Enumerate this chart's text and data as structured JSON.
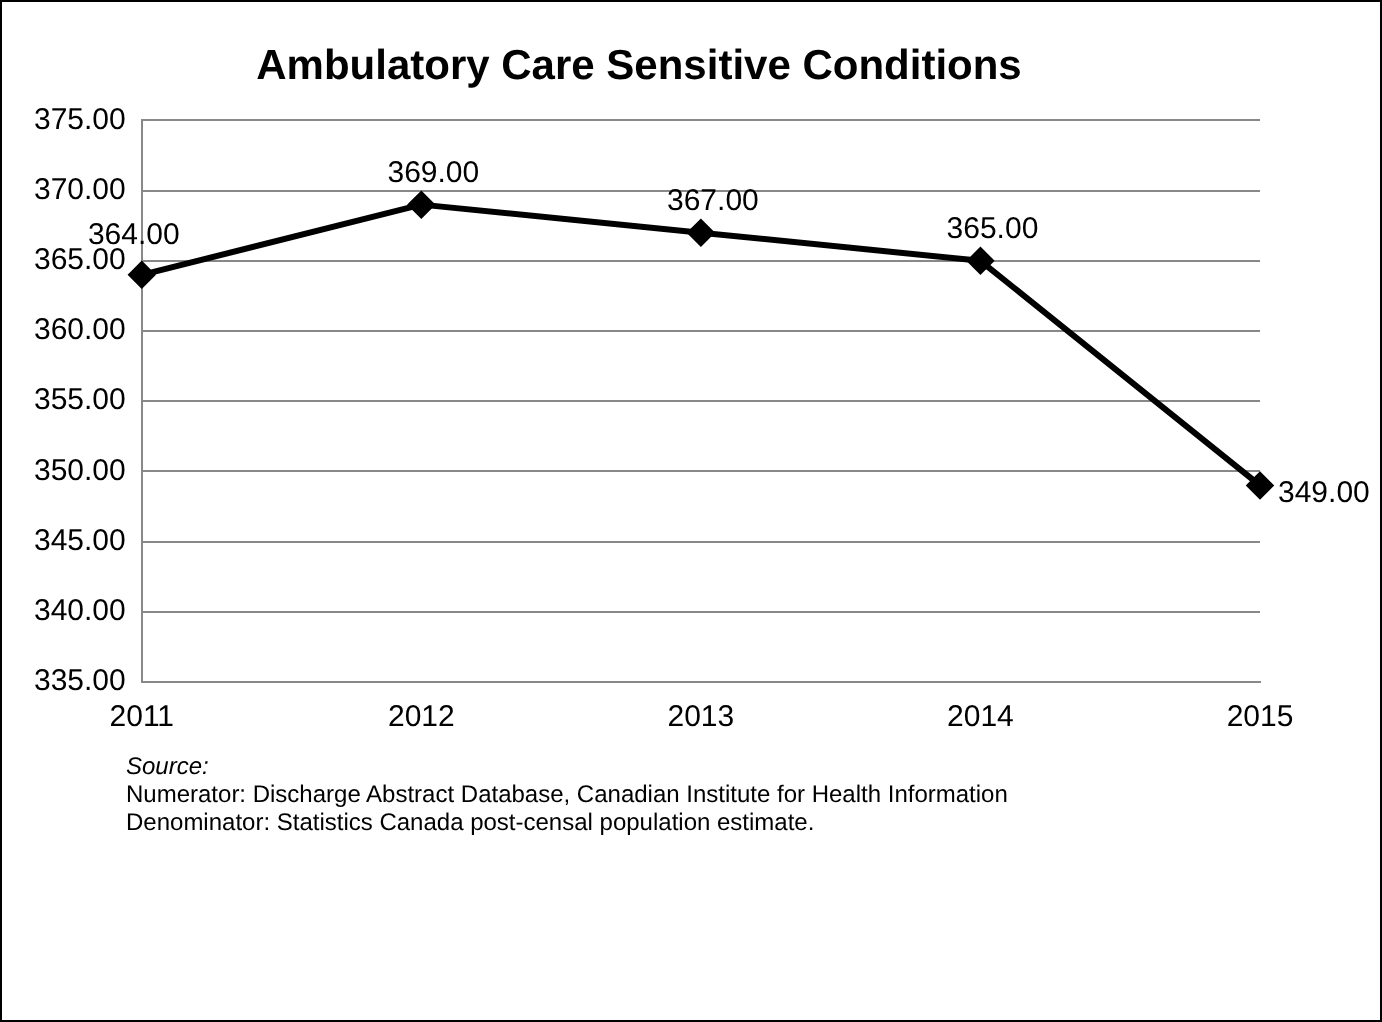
{
  "chart_data": {
    "type": "line",
    "title": "Ambulatory Care Sensitive Conditions",
    "categories": [
      "2011",
      "2012",
      "2013",
      "2014",
      "2015"
    ],
    "series": [
      {
        "color": "#000000",
        "values": [
          364,
          369,
          367,
          365,
          349
        ],
        "value_labels": [
          "364.00",
          "369.00",
          "367.00",
          "365.00",
          "349.00"
        ]
      }
    ],
    "ylim": [
      335,
      375
    ],
    "yticks": [
      {
        "value": 335,
        "label": "335.00"
      },
      {
        "value": 340,
        "label": "340.00"
      },
      {
        "value": 345,
        "label": "345.00"
      },
      {
        "value": 350,
        "label": "350.00"
      },
      {
        "value": 355,
        "label": "355.00"
      },
      {
        "value": 360,
        "label": "360.00"
      },
      {
        "value": 365,
        "label": "365.00"
      },
      {
        "value": 370,
        "label": "370.00"
      },
      {
        "value": 375,
        "label": "375.00"
      }
    ],
    "grid": "y",
    "legend": false,
    "marker": "diamond",
    "line_style": "solid",
    "annotations": [
      "Source:",
      "Numerator: Discharge Abstract Database, Canadian Institute for Health Information",
      "Denominator: Statistics Canada post-censal population estimate."
    ]
  }
}
